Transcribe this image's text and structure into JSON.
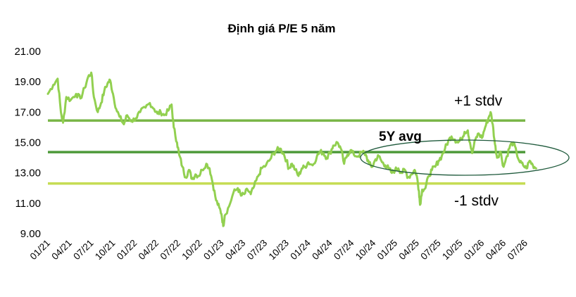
{
  "chart_data": {
    "type": "line",
    "title": "Định giá P/E 5 năm",
    "xlabel": "",
    "ylabel": "",
    "ylim": [
      9,
      21
    ],
    "y_ticks": [
      "21.00",
      "19.00",
      "17.00",
      "15.00",
      "13.00",
      "11.00",
      "9.00"
    ],
    "y_tick_values": [
      21,
      19,
      17,
      15,
      13,
      11,
      9
    ],
    "x_ticks": [
      "01/21",
      "04/21",
      "07/21",
      "10/21",
      "01/22",
      "04/22",
      "07/22",
      "10/22",
      "01/23",
      "04/23",
      "07/23",
      "10/23",
      "01/24",
      "04/24",
      "07/24",
      "10/24",
      "01/25",
      "04/25",
      "07/25",
      "10/25",
      "01/26",
      "04/26",
      "07/26"
    ],
    "grid": false,
    "series": [
      {
        "values": [
          [
            0,
            18.2
          ],
          [
            0.25,
            18.8
          ],
          [
            0.45,
            19.2
          ],
          [
            0.6,
            17.0
          ],
          [
            0.7,
            16.3
          ],
          [
            0.85,
            18.0
          ],
          [
            1.05,
            17.8
          ],
          [
            1.3,
            18.2
          ],
          [
            1.5,
            17.9
          ],
          [
            1.7,
            18.6
          ],
          [
            1.85,
            19.3
          ],
          [
            2.0,
            19.6
          ],
          [
            2.12,
            18.0
          ],
          [
            2.3,
            17.0
          ],
          [
            2.45,
            17.6
          ],
          [
            2.6,
            18.4
          ],
          [
            2.75,
            18.9
          ],
          [
            2.87,
            19.1
          ],
          [
            3.0,
            18.2
          ],
          [
            3.15,
            17.2
          ],
          [
            3.3,
            16.7
          ],
          [
            3.5,
            16.2
          ],
          [
            3.65,
            16.8
          ],
          [
            3.85,
            16.4
          ],
          [
            4.05,
            16.6
          ],
          [
            4.25,
            17.0
          ],
          [
            4.5,
            17.3
          ],
          [
            4.7,
            17.6
          ],
          [
            4.9,
            17.2
          ],
          [
            5.05,
            16.9
          ],
          [
            5.2,
            17.0
          ],
          [
            5.35,
            16.8
          ],
          [
            5.55,
            17.1
          ],
          [
            5.7,
            17.5
          ],
          [
            5.8,
            16.0
          ],
          [
            5.95,
            15.0
          ],
          [
            6.05,
            14.2
          ],
          [
            6.2,
            13.4
          ],
          [
            6.35,
            12.7
          ],
          [
            6.5,
            13.2
          ],
          [
            6.65,
            12.6
          ],
          [
            6.8,
            12.9
          ],
          [
            6.95,
            12.8
          ],
          [
            7.1,
            13.2
          ],
          [
            7.3,
            13.6
          ],
          [
            7.45,
            13.3
          ],
          [
            7.6,
            12.3
          ],
          [
            7.75,
            11.2
          ],
          [
            7.9,
            10.7
          ],
          [
            8.0,
            10.3
          ],
          [
            8.08,
            9.5
          ],
          [
            8.15,
            10.2
          ],
          [
            8.35,
            10.8
          ],
          [
            8.55,
            11.7
          ],
          [
            8.75,
            12.0
          ],
          [
            8.9,
            11.5
          ],
          [
            9.05,
            11.6
          ],
          [
            9.2,
            11.9
          ],
          [
            9.35,
            11.6
          ],
          [
            9.5,
            12.1
          ],
          [
            9.7,
            12.8
          ],
          [
            9.85,
            13.3
          ],
          [
            10.05,
            13.5
          ],
          [
            10.25,
            13.9
          ],
          [
            10.4,
            14.3
          ],
          [
            10.55,
            14.5
          ],
          [
            10.7,
            14.6
          ],
          [
            10.85,
            14.3
          ],
          [
            11.0,
            13.8
          ],
          [
            11.1,
            13.3
          ],
          [
            11.25,
            13.6
          ],
          [
            11.4,
            13.2
          ],
          [
            11.55,
            12.8
          ],
          [
            11.7,
            13.3
          ],
          [
            11.85,
            13.4
          ],
          [
            12.0,
            13.7
          ],
          [
            12.2,
            13.5
          ],
          [
            12.4,
            14.1
          ],
          [
            12.55,
            14.4
          ],
          [
            12.7,
            14.3
          ],
          [
            12.85,
            14.0
          ],
          [
            13.0,
            14.3
          ],
          [
            13.15,
            14.8
          ],
          [
            13.35,
            15.0
          ],
          [
            13.5,
            14.6
          ],
          [
            13.65,
            13.6
          ],
          [
            13.8,
            14.2
          ],
          [
            13.95,
            14.5
          ],
          [
            14.1,
            14.2
          ],
          [
            14.3,
            14.1
          ],
          [
            14.5,
            14.4
          ],
          [
            14.65,
            14.2
          ],
          [
            14.8,
            13.6
          ],
          [
            14.95,
            13.4
          ],
          [
            15.1,
            13.9
          ],
          [
            15.25,
            14.1
          ],
          [
            15.4,
            13.7
          ],
          [
            15.55,
            13.5
          ],
          [
            15.7,
            13.3
          ],
          [
            15.85,
            13.0
          ],
          [
            16.0,
            13.2
          ],
          [
            16.15,
            13.3
          ],
          [
            16.3,
            13.0
          ],
          [
            16.45,
            13.2
          ],
          [
            16.6,
            12.7
          ],
          [
            16.75,
            12.9
          ],
          [
            16.9,
            13.2
          ],
          [
            17.0,
            12.8
          ],
          [
            17.1,
            11.8
          ],
          [
            17.15,
            10.9
          ],
          [
            17.25,
            11.9
          ],
          [
            17.4,
            12.0
          ],
          [
            17.55,
            12.8
          ],
          [
            17.7,
            13.2
          ],
          [
            17.85,
            13.4
          ],
          [
            18.0,
            13.8
          ],
          [
            18.15,
            14.1
          ],
          [
            18.3,
            14.6
          ],
          [
            18.45,
            15.1
          ],
          [
            18.6,
            15.4
          ],
          [
            18.75,
            15.2
          ],
          [
            18.9,
            15.0
          ],
          [
            19.05,
            15.2
          ],
          [
            19.2,
            15.7
          ],
          [
            19.35,
            15.8
          ],
          [
            19.45,
            15.0
          ],
          [
            19.55,
            14.3
          ],
          [
            19.7,
            15.2
          ],
          [
            19.85,
            15.6
          ],
          [
            20.0,
            15.3
          ],
          [
            20.15,
            16.0
          ],
          [
            20.3,
            16.6
          ],
          [
            20.4,
            17.0
          ],
          [
            20.5,
            16.2
          ],
          [
            20.6,
            14.9
          ],
          [
            20.7,
            14.0
          ],
          [
            20.85,
            14.4
          ],
          [
            21.0,
            13.4
          ],
          [
            21.15,
            14.1
          ],
          [
            21.3,
            14.8
          ],
          [
            21.45,
            15.0
          ],
          [
            21.6,
            14.3
          ],
          [
            21.75,
            13.7
          ],
          [
            21.9,
            13.5
          ],
          [
            22.05,
            13.3
          ],
          [
            22.2,
            13.8
          ],
          [
            22.35,
            13.5
          ],
          [
            22.5,
            13.3
          ]
        ]
      }
    ],
    "reference_lines": [
      {
        "label": "+1 stdv",
        "value": 16.45
      },
      {
        "label": "5Y avg",
        "value": 14.37
      },
      {
        "label": "-1 stdv",
        "value": 12.3
      }
    ],
    "colors": {
      "series": "#92D050",
      "plus1": "#7AB648",
      "avg": "#4E9A3A",
      "minus1": "#C6DC54",
      "ellipse": "#1F5A3C"
    }
  }
}
